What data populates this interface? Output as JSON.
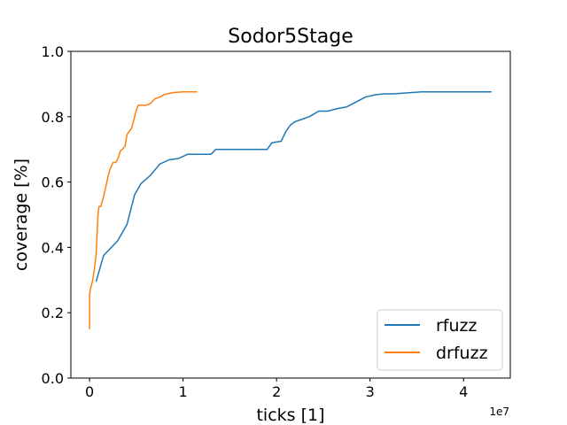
{
  "chart_data": {
    "type": "line",
    "title": "Sodor5Stage",
    "xlabel": "ticks [1]",
    "ylabel": "coverage [%]",
    "x_multiplier_label": "1e7",
    "xlim": [
      -0.2,
      4.5
    ],
    "ylim": [
      0.0,
      1.0
    ],
    "x_ticks": [
      0,
      1,
      2,
      3,
      4
    ],
    "y_ticks": [
      0.0,
      0.2,
      0.4,
      0.6,
      0.8,
      1.0
    ],
    "grid": false,
    "legend_position": "lower-right",
    "series": [
      {
        "name": "rfuzz",
        "color": "#1f77b4",
        "x": [
          0.07,
          0.15,
          0.3,
          0.4,
          0.48,
          0.55,
          0.65,
          0.75,
          0.85,
          0.95,
          1.05,
          1.2,
          1.3,
          1.35,
          1.45,
          1.9,
          1.95,
          2.05,
          2.1,
          2.15,
          2.2,
          2.25,
          2.35,
          2.45,
          2.55,
          2.65,
          2.75,
          2.85,
          2.95,
          3.05,
          3.15,
          3.25,
          3.35,
          3.45,
          3.55,
          4.0,
          4.3
        ],
        "y": [
          0.295,
          0.375,
          0.42,
          0.47,
          0.56,
          0.595,
          0.62,
          0.655,
          0.668,
          0.672,
          0.685,
          0.685,
          0.685,
          0.7,
          0.7,
          0.7,
          0.72,
          0.725,
          0.755,
          0.775,
          0.785,
          0.79,
          0.8,
          0.817,
          0.817,
          0.825,
          0.83,
          0.845,
          0.86,
          0.867,
          0.87,
          0.87,
          0.872,
          0.874,
          0.876,
          0.876,
          0.876
        ]
      },
      {
        "name": "drfuzz",
        "color": "#ff7f0e",
        "x": [
          0.0,
          0.0,
          0.01,
          0.03,
          0.05,
          0.07,
          0.09,
          0.1,
          0.12,
          0.15,
          0.17,
          0.2,
          0.22,
          0.25,
          0.28,
          0.3,
          0.33,
          0.35,
          0.38,
          0.4,
          0.45,
          0.5,
          0.52,
          0.55,
          0.6,
          0.65,
          0.7,
          0.75,
          0.8,
          0.9,
          1.0,
          1.15
        ],
        "y": [
          0.15,
          0.255,
          0.275,
          0.295,
          0.33,
          0.38,
          0.5,
          0.525,
          0.525,
          0.555,
          0.58,
          0.62,
          0.64,
          0.66,
          0.66,
          0.67,
          0.695,
          0.7,
          0.71,
          0.745,
          0.765,
          0.82,
          0.835,
          0.835,
          0.835,
          0.84,
          0.855,
          0.86,
          0.868,
          0.874,
          0.876,
          0.876
        ]
      }
    ]
  }
}
